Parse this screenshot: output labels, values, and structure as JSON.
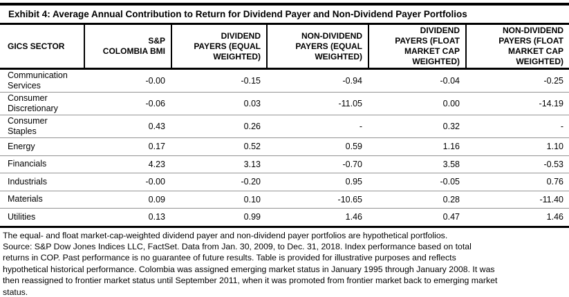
{
  "exhibit": {
    "title": "Exhibit 4: Average Annual Contribution to Return for Dividend Payer and Non-Dividend Payer Portfolios"
  },
  "table": {
    "columns": [
      {
        "label": "GICS SECTOR"
      },
      {
        "label": "S&P\nCOLOMBIA BMI"
      },
      {
        "label": "DIVIDEND\nPAYERS (EQUAL\nWEIGHTED)"
      },
      {
        "label": "NON-DIVIDEND\nPAYERS (EQUAL\nWEIGHTED)"
      },
      {
        "label": "DIVIDEND\nPAYERS (FLOAT\nMARKET CAP\nWEIGHTED)"
      },
      {
        "label": "NON-DIVIDEND\nPAYERS (FLOAT\nMARKET CAP\nWEIGHTED)"
      }
    ],
    "rows": [
      {
        "sector": "Communication\nServices",
        "values": [
          "-0.00",
          "-0.15",
          "-0.94",
          "-0.04",
          "-0.25"
        ]
      },
      {
        "sector": "Consumer\nDiscretionary",
        "values": [
          "-0.06",
          "0.03",
          "-11.05",
          "0.00",
          "-14.19"
        ]
      },
      {
        "sector": "Consumer\nStaples",
        "values": [
          "0.43",
          "0.26",
          "-",
          "0.32",
          "-"
        ]
      },
      {
        "sector": "Energy",
        "values": [
          "0.17",
          "0.52",
          "0.59",
          "1.16",
          "1.10"
        ]
      },
      {
        "sector": "Financials",
        "values": [
          "4.23",
          "3.13",
          "-0.70",
          "3.58",
          "-0.53"
        ]
      },
      {
        "sector": "Industrials",
        "values": [
          "-0.00",
          "-0.20",
          "0.95",
          "-0.05",
          "0.76"
        ]
      },
      {
        "sector": "Materials",
        "values": [
          "0.09",
          "0.10",
          "-10.65",
          "0.28",
          "-11.40"
        ]
      },
      {
        "sector": "Utilities",
        "values": [
          "0.13",
          "0.99",
          "1.46",
          "0.47",
          "1.46"
        ]
      }
    ]
  },
  "footnotes": {
    "lines": [
      "The equal- and float market-cap-weighted dividend payer and non-dividend payer portfolios are hypothetical portfolios.",
      "Source: S&P Dow Jones Indices LLC, FactSet. Data from Jan. 30, 2009, to Dec. 31, 2018. Index performance based on total",
      "returns in COP. Past performance is no guarantee of future results. Table is provided for illustrative purposes and reflects",
      "hypothetical historical performance. Colombia was assigned emerging market status in January 1995 through January 2008. It was",
      "then reassigned to frontier market status until September 2011, when it was promoted from frontier market back to emerging market",
      "status."
    ]
  },
  "colors": {
    "rule_black": "#000000",
    "separator_gray": "#929292",
    "background": "#ffffff",
    "text": "#000000"
  }
}
